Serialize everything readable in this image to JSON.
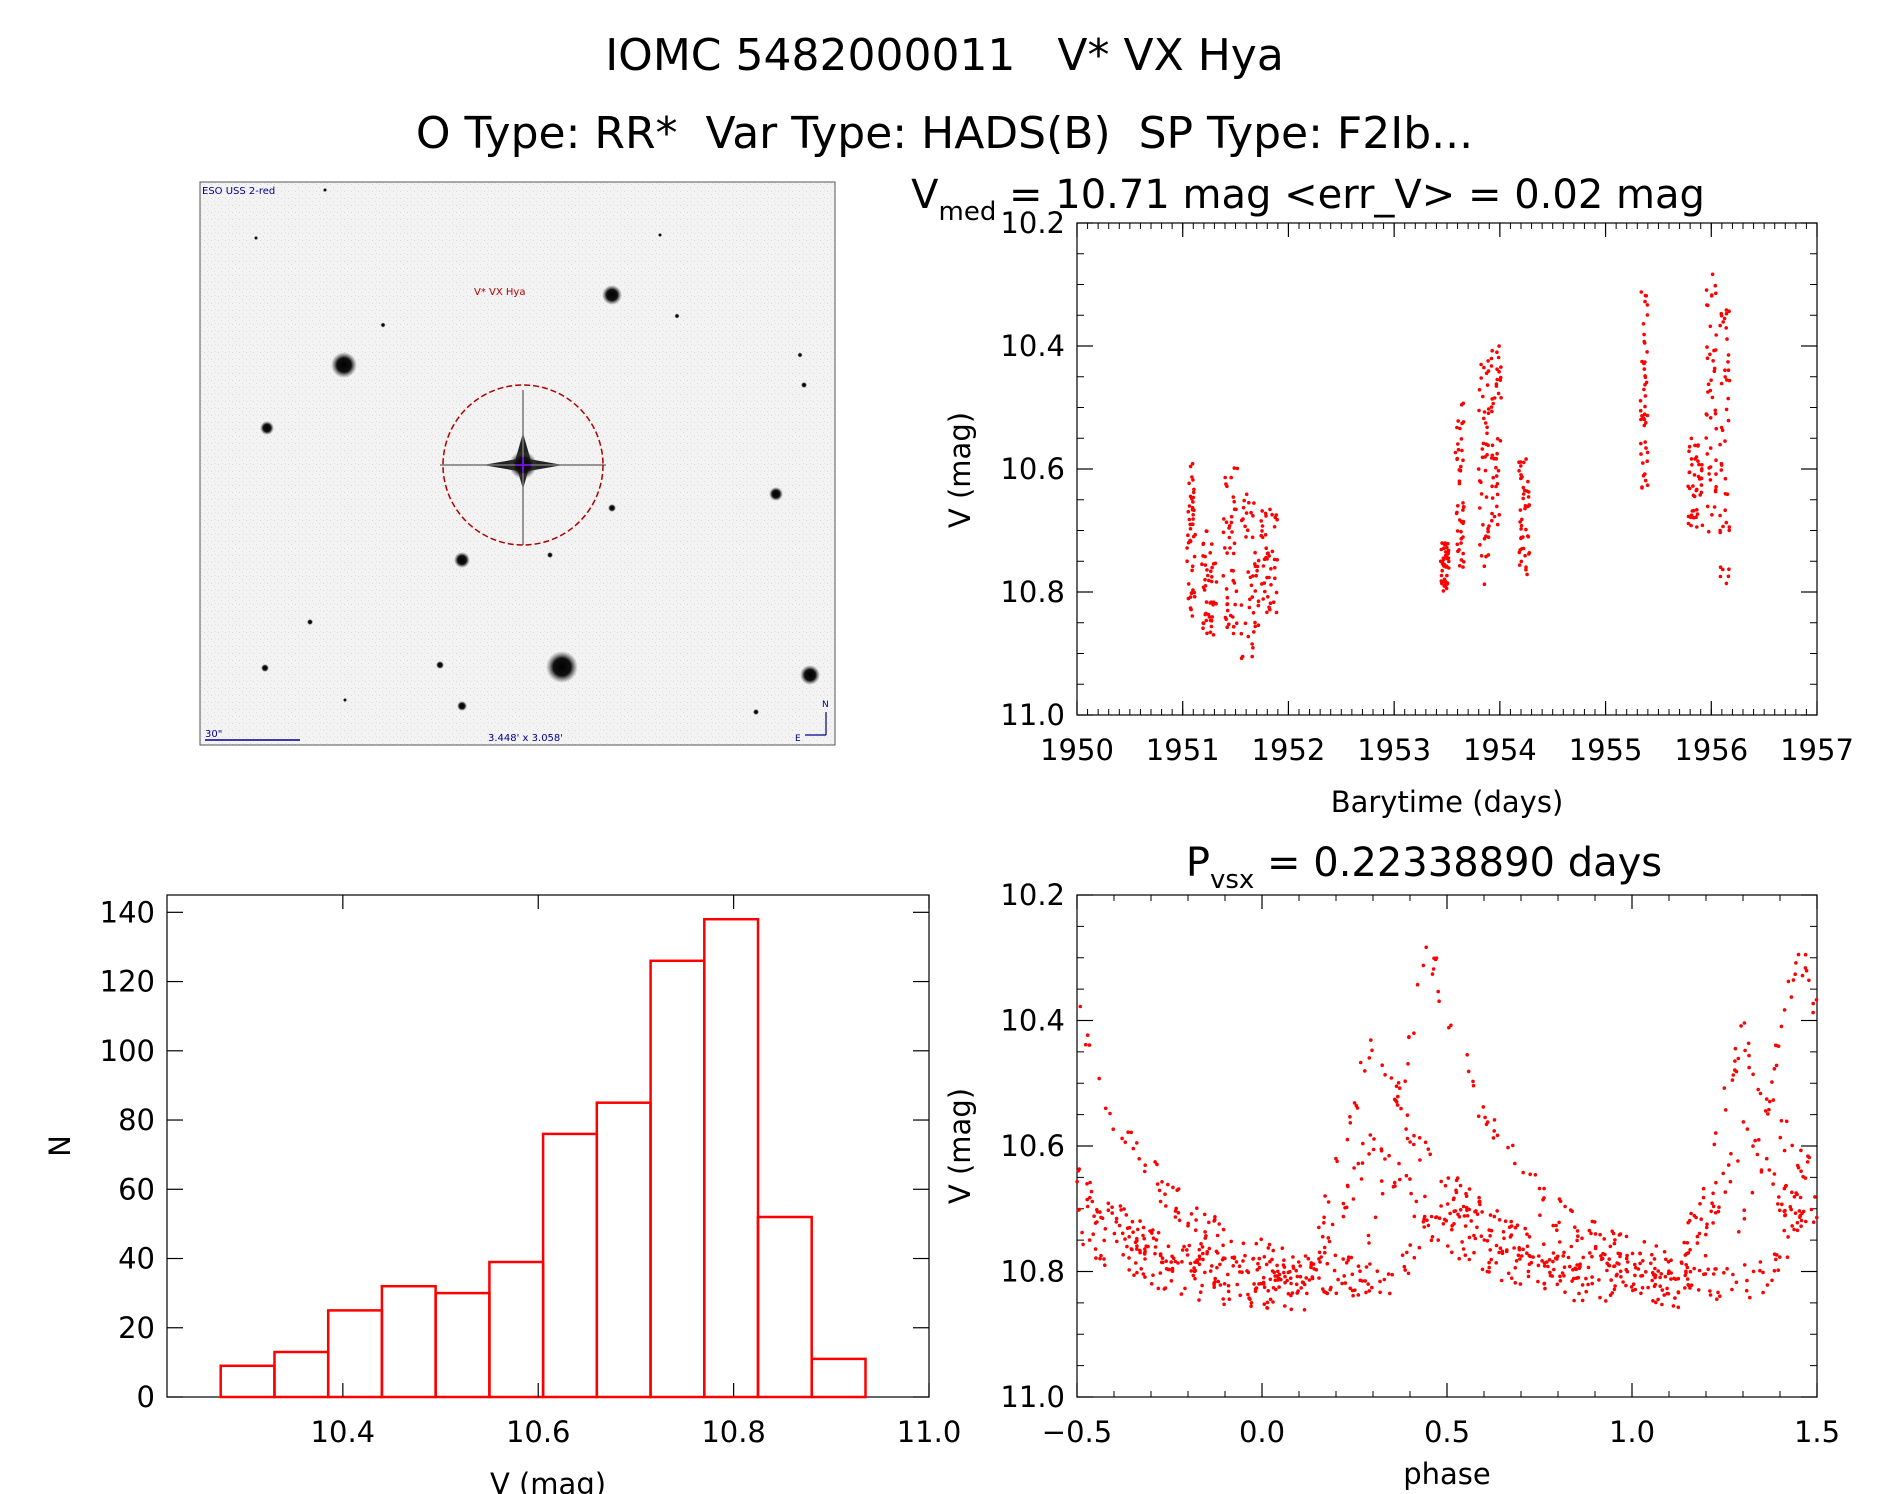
{
  "header": {
    "title": "IOMC 5482000011   V* VX Hya",
    "subtitle": "O Type: RR*  Var Type: HADS(B)  SP Type: F2Ib..."
  },
  "image_panel": {
    "survey": "ESO USS 2-red",
    "target": "V* VX Hya",
    "scale": "30\"",
    "fov": "3.448' x 3.058'",
    "north": "N",
    "east": "E"
  },
  "colors": {
    "data": "#ff0000",
    "axis": "#000000",
    "label_blue": "#00008b"
  },
  "chart_data": [
    {
      "id": "lightcurve",
      "type": "scatter",
      "title_parts": {
        "base": "V",
        "sub": "med",
        "rest": " = 10.71 mag <err_V> = 0.02 mag"
      },
      "xlabel": "Barytime (days)",
      "ylabel": "V (mag)",
      "xlim": [
        1950,
        1957
      ],
      "ylim": [
        11.0,
        10.2
      ],
      "xticks": [
        1950,
        1951,
        1952,
        1953,
        1954,
        1955,
        1956,
        1957
      ],
      "xtick_labels": [
        "1950",
        "1951",
        "1952",
        "1953",
        "1954",
        "1955",
        "1956",
        "1957"
      ],
      "yticks": [
        10.2,
        10.4,
        10.6,
        10.8,
        11.0
      ],
      "ytick_labels": [
        "10.2",
        "10.4",
        "10.6",
        "10.8",
        "11.0"
      ],
      "segments": [
        {
          "x": [
            1951.04,
            1951.12
          ],
          "y": [
            10.59,
            10.84
          ]
        },
        {
          "x": [
            1951.18,
            1951.32
          ],
          "y": [
            10.7,
            10.87
          ]
        },
        {
          "x": [
            1951.38,
            1951.52
          ],
          "y": [
            10.59,
            10.87
          ]
        },
        {
          "x": [
            1951.55,
            1951.72
          ],
          "y": [
            10.64,
            10.91
          ]
        },
        {
          "x": [
            1951.74,
            1951.9
          ],
          "y": [
            10.66,
            10.84
          ]
        },
        {
          "x": [
            1953.44,
            1953.52
          ],
          "y": [
            10.72,
            10.8
          ]
        },
        {
          "x": [
            1953.58,
            1953.66
          ],
          "y": [
            10.49,
            10.76
          ]
        },
        {
          "x": [
            1953.8,
            1953.9
          ],
          "y": [
            10.42,
            10.8
          ]
        },
        {
          "x": [
            1953.92,
            1954.02
          ],
          "y": [
            10.4,
            10.71
          ]
        },
        {
          "x": [
            1954.18,
            1954.28
          ],
          "y": [
            10.58,
            10.78
          ]
        },
        {
          "x": [
            1955.33,
            1955.4
          ],
          "y": [
            10.3,
            10.64
          ]
        },
        {
          "x": [
            1955.78,
            1955.92
          ],
          "y": [
            10.55,
            10.7
          ]
        },
        {
          "x": [
            1955.95,
            1956.05
          ],
          "y": [
            10.28,
            10.72
          ]
        },
        {
          "x": [
            1956.08,
            1956.18
          ],
          "y": [
            10.34,
            10.8
          ]
        }
      ]
    },
    {
      "id": "histogram",
      "type": "bar",
      "xlabel": "V (mag)",
      "ylabel": "N",
      "xlim": [
        10.22,
        11.0
      ],
      "ylim": [
        0,
        145
      ],
      "xticks": [
        10.4,
        10.6,
        10.8,
        11.0
      ],
      "xtick_labels": [
        "10.4",
        "10.6",
        "10.8",
        "11.0"
      ],
      "yticks": [
        0,
        20,
        40,
        60,
        80,
        100,
        120,
        140
      ],
      "ytick_labels": [
        "0",
        "20",
        "40",
        "60",
        "80",
        "100",
        "120",
        "140"
      ],
      "bin_edges": [
        10.275,
        10.33,
        10.385,
        10.44,
        10.495,
        10.55,
        10.605,
        10.66,
        10.715,
        10.77,
        10.825,
        10.88,
        10.935
      ],
      "values": [
        9,
        13,
        25,
        32,
        30,
        39,
        76,
        85,
        126,
        138,
        52,
        11
      ]
    },
    {
      "id": "phased",
      "type": "scatter",
      "title_parts": {
        "base": "P",
        "sub": "vsx",
        "rest": " = 0.22338890 days"
      },
      "xlabel": "phase",
      "ylabel": "V (mag)",
      "xlim": [
        -0.5,
        1.5
      ],
      "ylim": [
        11.0,
        10.2
      ],
      "xticks": [
        -0.5,
        0.0,
        0.5,
        1.0,
        1.5
      ],
      "xtick_labels": [
        "−0.5",
        "0.0",
        "0.5",
        "1.0",
        "1.5"
      ],
      "yticks": [
        10.2,
        10.4,
        10.6,
        10.8,
        11.0
      ],
      "ytick_labels": [
        "10.2",
        "10.4",
        "10.6",
        "10.8",
        "11.0"
      ],
      "branches": [
        {
          "peak_phase": 0.45,
          "peak_mag": 10.28,
          "base_mag": 10.82
        },
        {
          "peak_phase": 0.3,
          "peak_mag": 10.42,
          "base_mag": 10.82
        },
        {
          "peak_phase": 0.3,
          "peak_mag": 10.58,
          "base_mag": 10.84
        },
        {
          "peak_phase": 0.52,
          "peak_mag": 10.68,
          "base_mag": 10.82
        }
      ]
    }
  ]
}
